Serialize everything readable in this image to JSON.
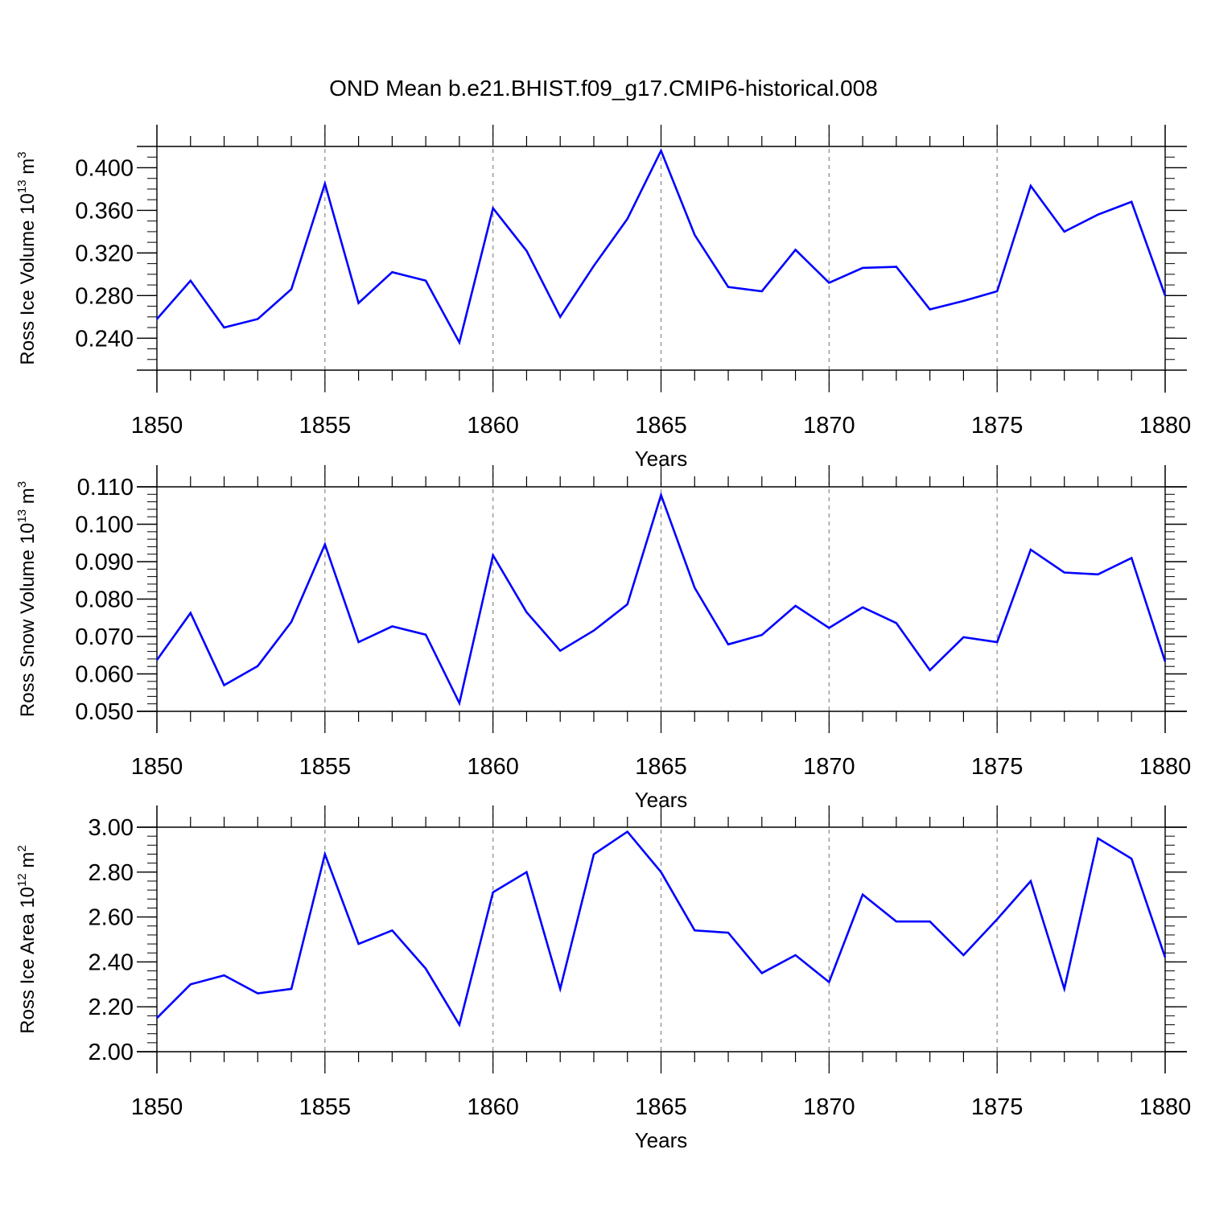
{
  "title": "OND Mean b.e21.BHIST.f09_g17.CMIP6-historical.008",
  "colors": {
    "series": "#0000ff",
    "axes": "#000000",
    "grid": "#888888"
  },
  "chart_data": [
    {
      "type": "line",
      "name": "ross-ice-volume",
      "ylabel": {
        "text": "Ross Ice Volume 10",
        "exp": "13",
        "unit": " m",
        "unit_exp": "3"
      },
      "xlabel": "Years",
      "xlim": [
        1850,
        1880
      ],
      "ylim": [
        0.21,
        0.42
      ],
      "y_major_ticks": [
        0.24,
        0.28,
        0.32,
        0.36,
        0.4
      ],
      "y_tick_labels": [
        "0.240",
        "0.280",
        "0.320",
        "0.360",
        "0.400"
      ],
      "y_minor_step": 0.01,
      "x": [
        1850,
        1851,
        1852,
        1853,
        1854,
        1855,
        1856,
        1857,
        1858,
        1859,
        1860,
        1861,
        1862,
        1863,
        1864,
        1865,
        1866,
        1867,
        1868,
        1869,
        1870,
        1871,
        1872,
        1873,
        1874,
        1875,
        1876,
        1877,
        1878,
        1879,
        1880
      ],
      "values": [
        0.258,
        0.294,
        0.25,
        0.258,
        0.286,
        0.385,
        0.273,
        0.302,
        0.294,
        0.236,
        0.362,
        0.322,
        0.26,
        0.308,
        0.352,
        0.416,
        0.337,
        0.288,
        0.284,
        0.323,
        0.292,
        0.306,
        0.307,
        0.267,
        0.275,
        0.284,
        0.383,
        0.34,
        0.356,
        0.368,
        0.28
      ]
    },
    {
      "type": "line",
      "name": "ross-snow-volume",
      "ylabel": {
        "text": "Ross Snow Volume 10",
        "exp": "13",
        "unit": " m",
        "unit_exp": "3"
      },
      "xlabel": "Years",
      "xlim": [
        1850,
        1880
      ],
      "ylim": [
        0.05,
        0.11
      ],
      "y_major_ticks": [
        0.05,
        0.06,
        0.07,
        0.08,
        0.09,
        0.1,
        0.11
      ],
      "y_tick_labels": [
        "0.050",
        "0.060",
        "0.070",
        "0.080",
        "0.090",
        "0.100",
        "0.110"
      ],
      "y_minor_step": 0.002,
      "x": [
        1850,
        1851,
        1852,
        1853,
        1854,
        1855,
        1856,
        1857,
        1858,
        1859,
        1860,
        1861,
        1862,
        1863,
        1864,
        1865,
        1866,
        1867,
        1868,
        1869,
        1870,
        1871,
        1872,
        1873,
        1874,
        1875,
        1876,
        1877,
        1878,
        1879,
        1880
      ],
      "values": [
        0.0637,
        0.0763,
        0.057,
        0.0621,
        0.0739,
        0.0946,
        0.0685,
        0.0727,
        0.0705,
        0.0522,
        0.0917,
        0.0765,
        0.0662,
        0.0716,
        0.0786,
        0.1078,
        0.083,
        0.0679,
        0.0704,
        0.0782,
        0.0723,
        0.0778,
        0.0736,
        0.061,
        0.0698,
        0.0685,
        0.0932,
        0.0871,
        0.0866,
        0.091,
        0.0633
      ]
    },
    {
      "type": "line",
      "name": "ross-ice-area",
      "ylabel": {
        "text": "Ross Ice Area 10",
        "exp": "12",
        "unit": " m",
        "unit_exp": "2"
      },
      "xlabel": "Years",
      "xlim": [
        1850,
        1880
      ],
      "ylim": [
        2.0,
        3.0
      ],
      "y_major_ticks": [
        2.0,
        2.2,
        2.4,
        2.6,
        2.8,
        3.0
      ],
      "y_tick_labels": [
        "2.00",
        "2.20",
        "2.40",
        "2.60",
        "2.80",
        "3.00"
      ],
      "y_minor_step": 0.04,
      "x": [
        1850,
        1851,
        1852,
        1853,
        1854,
        1855,
        1856,
        1857,
        1858,
        1859,
        1860,
        1861,
        1862,
        1863,
        1864,
        1865,
        1866,
        1867,
        1868,
        1869,
        1870,
        1871,
        1872,
        1873,
        1874,
        1875,
        1876,
        1877,
        1878,
        1879,
        1880
      ],
      "values": [
        2.15,
        2.3,
        2.34,
        2.26,
        2.28,
        2.88,
        2.48,
        2.54,
        2.37,
        2.12,
        2.71,
        2.8,
        2.28,
        2.88,
        2.98,
        2.8,
        2.54,
        2.53,
        2.35,
        2.43,
        2.31,
        2.7,
        2.58,
        2.58,
        2.43,
        2.59,
        2.76,
        2.28,
        2.95,
        2.86,
        2.42
      ]
    }
  ],
  "x_tick_labels": [
    "1850",
    "1855",
    "1860",
    "1865",
    "1870",
    "1875",
    "1880"
  ]
}
